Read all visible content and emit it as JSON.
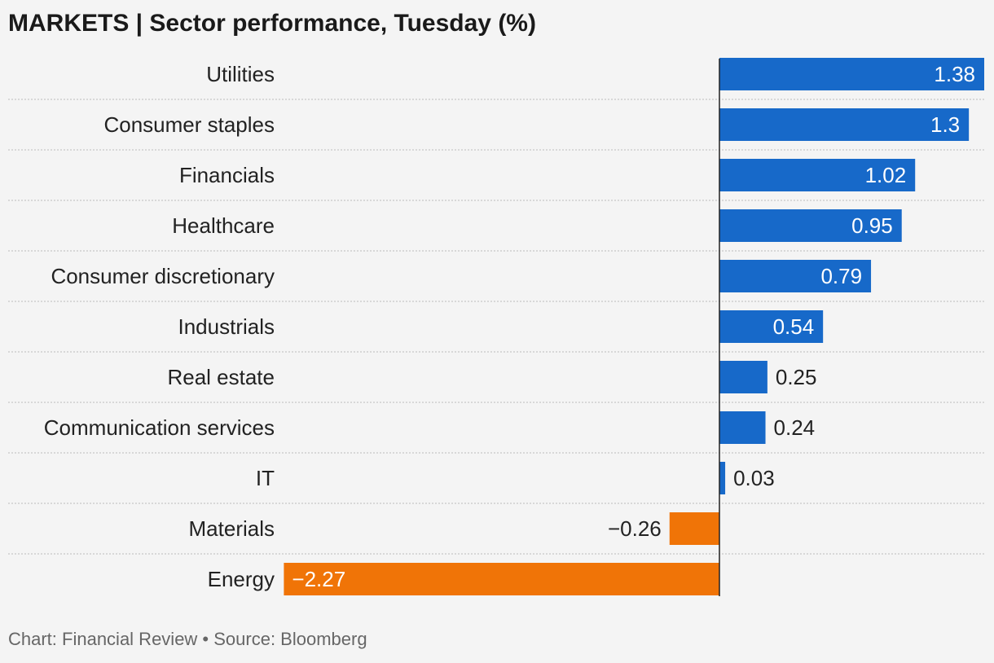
{
  "title": "MARKETS | Sector performance, Tuesday (%)",
  "footer": "Chart: Financial Review • Source: Bloomberg",
  "colors": {
    "positive": "#1769c9",
    "negative": "#f07407",
    "axis": "#222222",
    "grid": "#cfcfcf"
  },
  "chart_data": {
    "type": "bar",
    "orientation": "horizontal",
    "categories": [
      "Utilities",
      "Consumer staples",
      "Financials",
      "Healthcare",
      "Consumer discretionary",
      "Industrials",
      "Real estate",
      "Communication services",
      "IT",
      "Materials",
      "Energy"
    ],
    "values": [
      1.38,
      1.3,
      1.02,
      0.95,
      0.79,
      0.54,
      0.25,
      0.24,
      0.03,
      -0.26,
      -2.27
    ],
    "value_labels": [
      "1.38",
      "1.3",
      "1.02",
      "0.95",
      "0.79",
      "0.54",
      "0.25",
      "0.24",
      "0.03",
      "−0.26",
      "−2.27"
    ],
    "xlim": [
      -2.27,
      1.38
    ],
    "grid": false,
    "row_separators": true
  }
}
